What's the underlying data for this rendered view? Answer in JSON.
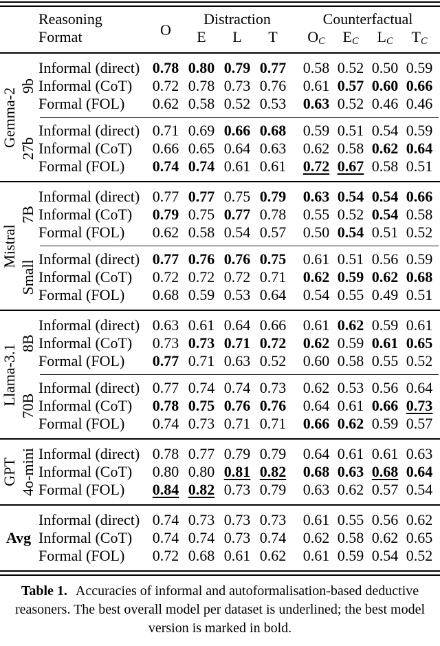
{
  "table": {
    "header": {
      "format_line1": "Reasoning",
      "format_line2": "Format",
      "o_label": "O",
      "distraction": {
        "title": "Distraction",
        "cols": [
          "E",
          "L",
          "T"
        ]
      },
      "counterfactual": {
        "title": "Counterfactual",
        "cols": [
          {
            "base": "O",
            "sub": "C"
          },
          {
            "base": "E",
            "sub": "C"
          },
          {
            "base": "L",
            "sub": "C"
          },
          {
            "base": "T",
            "sub": "C"
          }
        ]
      }
    },
    "style_legend": {
      "b": "bold (best model version)",
      "u": "underlined (best overall model per dataset)"
    },
    "groups": [
      {
        "model": "Gemma-2",
        "rotated": true,
        "blocks": [
          {
            "version": "9b",
            "rows": [
              {
                "format": "Informal (direct)",
                "values": [
                  "0.78",
                  "0.80",
                  "0.79",
                  "0.77",
                  "0.58",
                  "0.52",
                  "0.50",
                  "0.59"
                ],
                "styles": [
                  "b",
                  "b",
                  "b",
                  "b",
                  "",
                  "",
                  "",
                  ""
                ]
              },
              {
                "format": "Informal (CoT)",
                "values": [
                  "0.72",
                  "0.78",
                  "0.73",
                  "0.76",
                  "0.61",
                  "0.57",
                  "0.60",
                  "0.66"
                ],
                "styles": [
                  "",
                  "",
                  "",
                  "",
                  "",
                  "b",
                  "b",
                  "b"
                ]
              },
              {
                "format": "Formal (FOL)",
                "values": [
                  "0.62",
                  "0.58",
                  "0.52",
                  "0.53",
                  "0.63",
                  "0.52",
                  "0.46",
                  "0.46"
                ],
                "styles": [
                  "",
                  "",
                  "",
                  "",
                  "b",
                  "",
                  "",
                  ""
                ]
              }
            ]
          },
          {
            "version": "27b",
            "rows": [
              {
                "format": "Informal (direct)",
                "values": [
                  "0.71",
                  "0.69",
                  "0.66",
                  "0.68",
                  "0.59",
                  "0.51",
                  "0.54",
                  "0.59"
                ],
                "styles": [
                  "",
                  "",
                  "b",
                  "b",
                  "",
                  "",
                  "",
                  ""
                ]
              },
              {
                "format": "Informal (CoT)",
                "values": [
                  "0.66",
                  "0.65",
                  "0.64",
                  "0.63",
                  "0.62",
                  "0.58",
                  "0.62",
                  "0.64"
                ],
                "styles": [
                  "",
                  "",
                  "",
                  "",
                  "",
                  "",
                  "b",
                  "b"
                ]
              },
              {
                "format": "Formal (FOL)",
                "values": [
                  "0.74",
                  "0.74",
                  "0.61",
                  "0.61",
                  "0.72",
                  "0.67",
                  "0.58",
                  "0.51"
                ],
                "styles": [
                  "b",
                  "b",
                  "",
                  "",
                  "bu",
                  "bu",
                  "",
                  ""
                ]
              }
            ]
          }
        ]
      },
      {
        "model": "Mistral",
        "rotated": true,
        "blocks": [
          {
            "version": "7B",
            "rows": [
              {
                "format": "Informal (direct)",
                "values": [
                  "0.77",
                  "0.77",
                  "0.75",
                  "0.79",
                  "0.63",
                  "0.54",
                  "0.54",
                  "0.66"
                ],
                "styles": [
                  "",
                  "b",
                  "",
                  "b",
                  "b",
                  "b",
                  "b",
                  "b"
                ]
              },
              {
                "format": "Informal (CoT)",
                "values": [
                  "0.79",
                  "0.75",
                  "0.77",
                  "0.78",
                  "0.55",
                  "0.52",
                  "0.54",
                  "0.58"
                ],
                "styles": [
                  "b",
                  "",
                  "b",
                  "",
                  "",
                  "",
                  "b",
                  ""
                ]
              },
              {
                "format": "Formal (FOL)",
                "values": [
                  "0.62",
                  "0.58",
                  "0.54",
                  "0.57",
                  "0.50",
                  "0.54",
                  "0.51",
                  "0.52"
                ],
                "styles": [
                  "",
                  "",
                  "",
                  "",
                  "",
                  "b",
                  "",
                  ""
                ]
              }
            ]
          },
          {
            "version": "Small",
            "rows": [
              {
                "format": "Informal (direct)",
                "values": [
                  "0.77",
                  "0.76",
                  "0.76",
                  "0.75",
                  "0.61",
                  "0.51",
                  "0.56",
                  "0.59"
                ],
                "styles": [
                  "b",
                  "b",
                  "b",
                  "b",
                  "",
                  "",
                  "",
                  ""
                ]
              },
              {
                "format": "Informal (CoT)",
                "values": [
                  "0.72",
                  "0.72",
                  "0.72",
                  "0.71",
                  "0.62",
                  "0.59",
                  "0.62",
                  "0.68"
                ],
                "styles": [
                  "",
                  "",
                  "",
                  "",
                  "b",
                  "b",
                  "b",
                  "b"
                ]
              },
              {
                "format": "Formal (FOL)",
                "values": [
                  "0.68",
                  "0.59",
                  "0.53",
                  "0.64",
                  "0.54",
                  "0.55",
                  "0.49",
                  "0.51"
                ],
                "styles": [
                  "",
                  "",
                  "",
                  "",
                  "",
                  "",
                  "",
                  ""
                ]
              }
            ]
          }
        ]
      },
      {
        "model": "Llama-3.1",
        "rotated": true,
        "blocks": [
          {
            "version": "8B",
            "rows": [
              {
                "format": "Informal (direct)",
                "values": [
                  "0.63",
                  "0.61",
                  "0.64",
                  "0.66",
                  "0.61",
                  "0.62",
                  "0.59",
                  "0.61"
                ],
                "styles": [
                  "",
                  "",
                  "",
                  "",
                  "",
                  "b",
                  "",
                  ""
                ]
              },
              {
                "format": "Informal (CoT)",
                "values": [
                  "0.73",
                  "0.73",
                  "0.71",
                  "0.72",
                  "0.62",
                  "0.59",
                  "0.61",
                  "0.65"
                ],
                "styles": [
                  "",
                  "b",
                  "b",
                  "b",
                  "b",
                  "",
                  "b",
                  "b"
                ]
              },
              {
                "format": "Formal (FOL)",
                "values": [
                  "0.77",
                  "0.71",
                  "0.63",
                  "0.52",
                  "0.60",
                  "0.58",
                  "0.55",
                  "0.52"
                ],
                "styles": [
                  "b",
                  "",
                  "",
                  "",
                  "",
                  "",
                  "",
                  ""
                ]
              }
            ]
          },
          {
            "version": "70B",
            "rows": [
              {
                "format": "Informal (direct)",
                "values": [
                  "0.77",
                  "0.74",
                  "0.74",
                  "0.73",
                  "0.62",
                  "0.53",
                  "0.56",
                  "0.64"
                ],
                "styles": [
                  "",
                  "",
                  "",
                  "",
                  "",
                  "",
                  "",
                  ""
                ]
              },
              {
                "format": "Informal (CoT)",
                "values": [
                  "0.78",
                  "0.75",
                  "0.76",
                  "0.76",
                  "0.64",
                  "0.61",
                  "0.66",
                  "0.73"
                ],
                "styles": [
                  "b",
                  "b",
                  "b",
                  "b",
                  "",
                  "",
                  "b",
                  "bu"
                ]
              },
              {
                "format": "Formal (FOL)",
                "values": [
                  "0.74",
                  "0.73",
                  "0.71",
                  "0.71",
                  "0.66",
                  "0.62",
                  "0.59",
                  "0.57"
                ],
                "styles": [
                  "",
                  "",
                  "",
                  "",
                  "b",
                  "b",
                  "",
                  ""
                ]
              }
            ]
          }
        ]
      },
      {
        "model": "GPT",
        "rotated": true,
        "blocks": [
          {
            "version": "4o-mini",
            "rows": [
              {
                "format": "Informal (direct)",
                "values": [
                  "0.78",
                  "0.77",
                  "0.79",
                  "0.79",
                  "0.64",
                  "0.61",
                  "0.61",
                  "0.63"
                ],
                "styles": [
                  "",
                  "",
                  "",
                  "",
                  "",
                  "",
                  "",
                  ""
                ]
              },
              {
                "format": "Informal (CoT)",
                "values": [
                  "0.80",
                  "0.80",
                  "0.81",
                  "0.82",
                  "0.68",
                  "0.63",
                  "0.68",
                  "0.64"
                ],
                "styles": [
                  "",
                  "",
                  "bu",
                  "bu",
                  "b",
                  "b",
                  "bu",
                  "b"
                ]
              },
              {
                "format": "Formal (FOL)",
                "values": [
                  "0.84",
                  "0.82",
                  "0.73",
                  "0.79",
                  "0.63",
                  "0.62",
                  "0.57",
                  "0.54"
                ],
                "styles": [
                  "bu",
                  "bu",
                  "",
                  "",
                  "",
                  "",
                  "",
                  ""
                ]
              }
            ]
          }
        ]
      },
      {
        "model": "Avg",
        "rotated": false,
        "blocks": [
          {
            "version": "",
            "rows": [
              {
                "format": "Informal (direct)",
                "values": [
                  "0.74",
                  "0.73",
                  "0.73",
                  "0.73",
                  "0.61",
                  "0.55",
                  "0.56",
                  "0.62"
                ],
                "styles": [
                  "",
                  "",
                  "",
                  "",
                  "",
                  "",
                  "",
                  ""
                ]
              },
              {
                "format": "Informal (CoT)",
                "values": [
                  "0.74",
                  "0.74",
                  "0.73",
                  "0.74",
                  "0.62",
                  "0.58",
                  "0.62",
                  "0.65"
                ],
                "styles": [
                  "",
                  "",
                  "",
                  "",
                  "",
                  "",
                  "",
                  ""
                ]
              },
              {
                "format": "Formal (FOL)",
                "values": [
                  "0.72",
                  "0.68",
                  "0.61",
                  "0.62",
                  "0.61",
                  "0.59",
                  "0.54",
                  "0.52"
                ],
                "styles": [
                  "",
                  "",
                  "",
                  "",
                  "",
                  "",
                  "",
                  ""
                ]
              }
            ]
          }
        ]
      }
    ]
  },
  "caption": {
    "label": "Table 1.",
    "text": "Accuracies of informal and autoformalisation-based deductive reasoners. The best overall model per dataset is underlined; the best model version is marked in bold."
  }
}
